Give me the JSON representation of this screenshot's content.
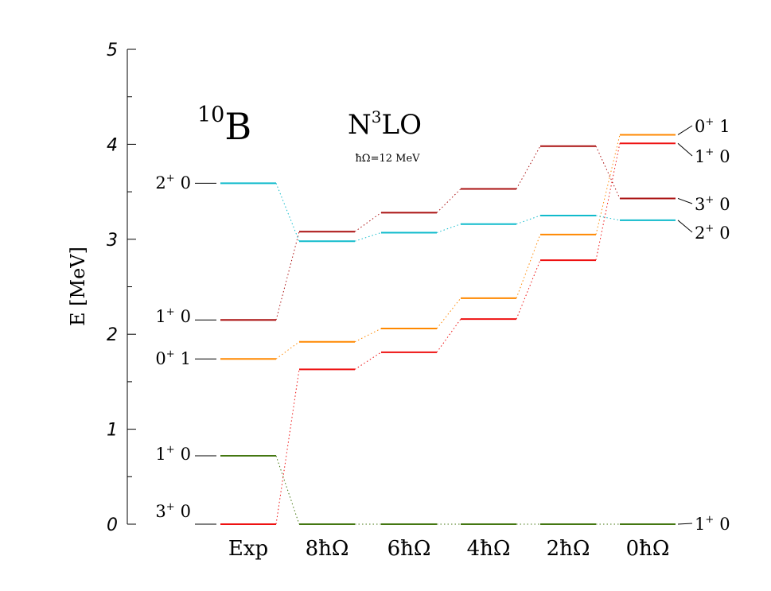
{
  "chart_data": {
    "type": "level_scheme",
    "title": "",
    "nucleus": {
      "mass_number": "10",
      "symbol": "B"
    },
    "interaction": {
      "base": "N",
      "power": "3",
      "suffix": "LO"
    },
    "subtitle": "ħΩ=12 MeV",
    "ylabel": "E [MeV]",
    "ylim": [
      0,
      5
    ],
    "y_ticks": [
      "0",
      "1",
      "2",
      "3",
      "4",
      "5"
    ],
    "grid": false,
    "columns": [
      "Exp",
      "8ħΩ",
      "6ħΩ",
      "4ħΩ",
      "2ħΩ",
      "0ħΩ"
    ],
    "states": [
      {
        "key": "3p0",
        "color": "#ee1111",
        "energies": [
          0.0,
          1.63,
          1.81,
          2.16,
          2.78,
          4.01
        ]
      },
      {
        "key": "1p0a",
        "color": "#447711",
        "energies": [
          0.72,
          0.0,
          0.0,
          0.0,
          0.0,
          0.0
        ]
      },
      {
        "key": "0p1",
        "color": "#ff8800",
        "energies": [
          1.74,
          1.92,
          2.06,
          2.38,
          3.05,
          4.1
        ]
      },
      {
        "key": "1p0b",
        "color": "#aa1111",
        "energies": [
          2.15,
          3.08,
          3.28,
          3.53,
          3.98,
          3.43
        ]
      },
      {
        "key": "2p0",
        "color": "#11bbcc",
        "energies": [
          3.59,
          2.98,
          3.07,
          3.16,
          3.25,
          3.2
        ]
      }
    ],
    "exp_labels": [
      {
        "spin": "3",
        "parity": "+",
        "isospin": "0"
      },
      {
        "spin": "1",
        "parity": "+",
        "isospin": "0"
      },
      {
        "spin": "0",
        "parity": "+",
        "isospin": "1"
      },
      {
        "spin": "1",
        "parity": "+",
        "isospin": "0"
      },
      {
        "spin": "2",
        "parity": "+",
        "isospin": "0"
      }
    ],
    "theory_labels": [
      {
        "spin": "0",
        "parity": "+",
        "isospin": "1"
      },
      {
        "spin": "1",
        "parity": "+",
        "isospin": "0"
      },
      {
        "spin": "3",
        "parity": "+",
        "isospin": "0"
      },
      {
        "spin": "2",
        "parity": "+",
        "isospin": "0"
      },
      {
        "spin": "1",
        "parity": "+",
        "isospin": "0"
      }
    ]
  }
}
